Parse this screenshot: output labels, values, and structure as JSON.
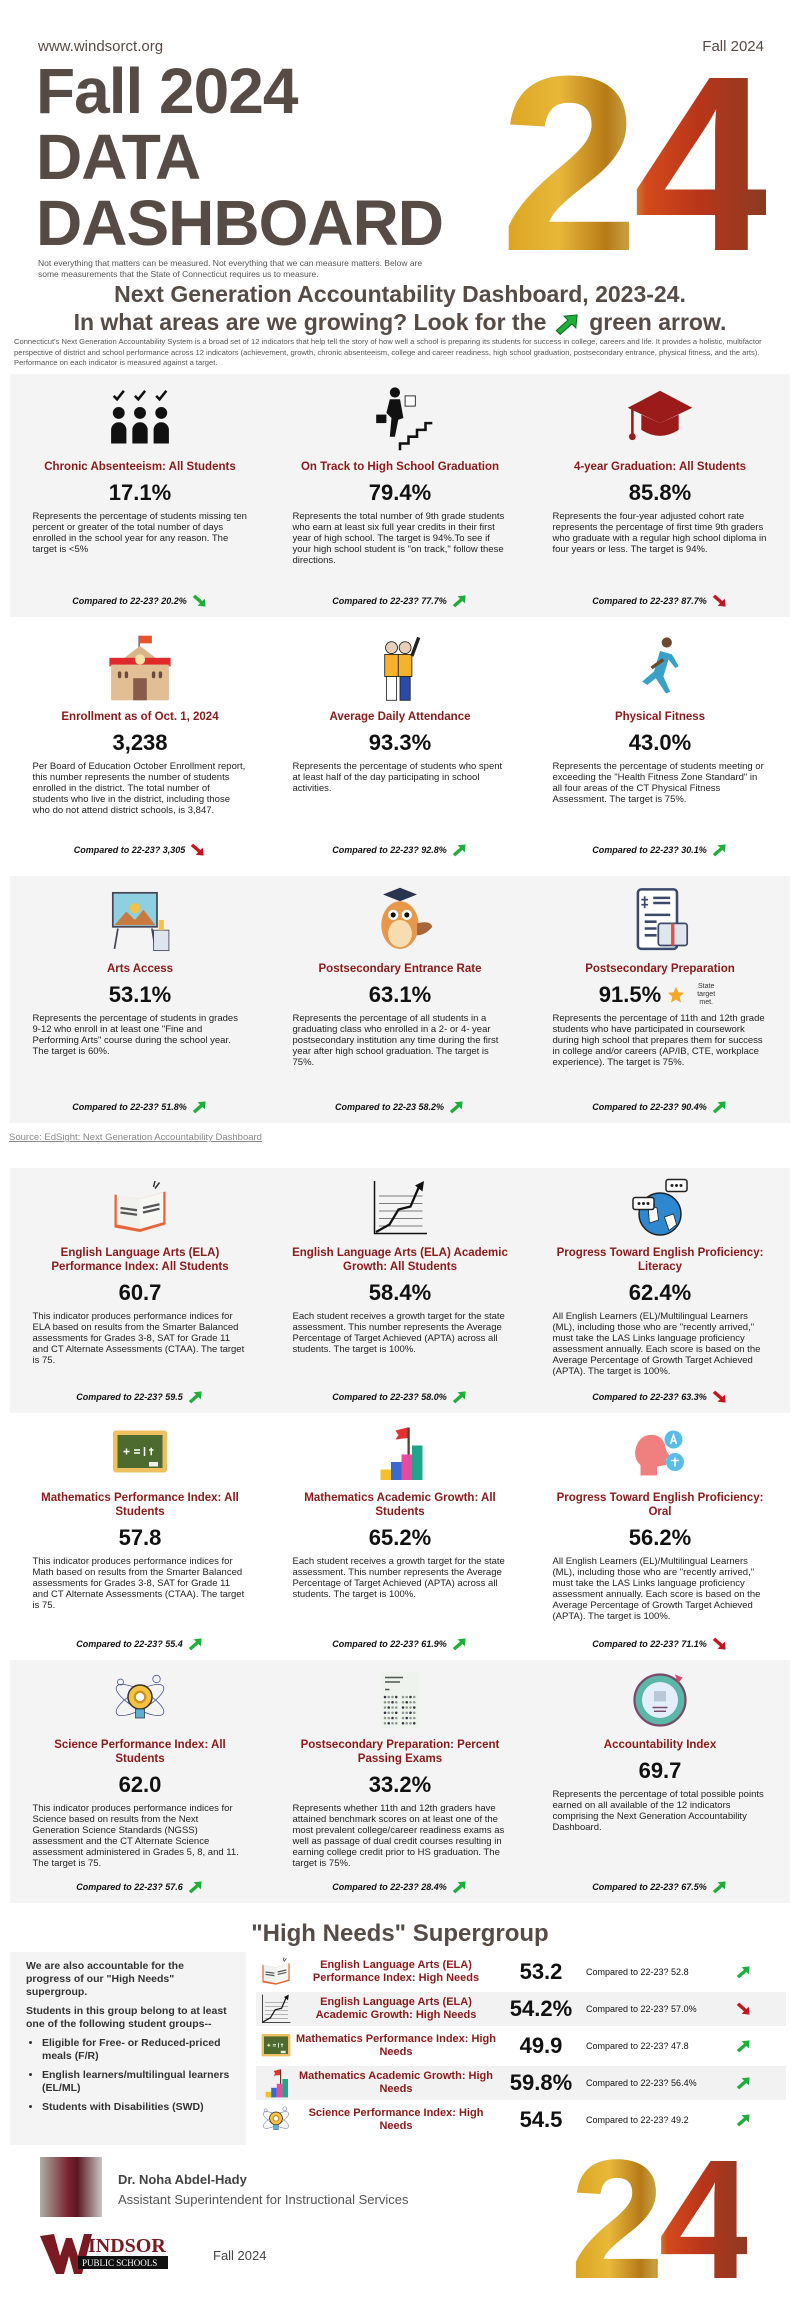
{
  "header": {
    "site": "www.windsorct.org",
    "fall_label": "Fall 2024",
    "title_lines": [
      "Fall 2024",
      "DATA",
      "DASHBOARD"
    ],
    "big_number": "24",
    "tagline": "Not everything that matters can be measured. Not everything that we can measure matters. Below are some measurements that the State of Connecticut requires us to measure."
  },
  "ng": {
    "line1": "Next Generation Accountability Dashboard, 2023-24.",
    "line2a": "In what areas are we growing?  Look for the",
    "line2b": "green arrow.",
    "intro": "Connecticut's Next Generation Accountability System is a broad set of 12 indicators that help tell the story of how well a school is preparing its students for success in college, careers and life. It provides a holistic, multifactor perspective of district and school performance across 12 indicators (achievement, growth, chronic absenteeism, college and career readiness, high school graduation, postsecondary entrance, physical fitness, and the arts). Performance on each indicator is measured against a target."
  },
  "colors": {
    "up": "#1fae3a",
    "down": "#c3161c",
    "title": "#8b1a1a",
    "brand": "#574b45"
  },
  "sections": [
    {
      "cards": [
        {
          "icon": "students-check-icon",
          "title": "Chronic Absenteeism: All Students",
          "value": "17.1%",
          "description": "Represents the percentage of students missing ten percent or greater of the total number of days enrolled in the school year for any reason. The target is <5%",
          "compared": "Compared to 22-23? 20.2%",
          "trend": "down-good"
        },
        {
          "icon": "student-climbing-stairs-icon",
          "title": "On Track to High School Graduation",
          "value": "79.4%",
          "description": "Represents the total number of 9th grade students who earn at least six full year credits in their first year of high school. The target is 94%.To see if your high school student is \"on track,\" follow these directions.",
          "compared": "Compared to 22-23? 77.7%",
          "trend": "up"
        },
        {
          "icon": "graduation-cap-icon",
          "title": "4-year Graduation: All Students",
          "value": "85.8%",
          "description": "Represents the four-year adjusted cohort rate represents the percentage of first time 9th graders who graduate with a regular high school diploma in four years or less. The target is 94%.",
          "compared": "Compared to 22-23? 87.7%",
          "trend": "down"
        }
      ]
    },
    {
      "cards": [
        {
          "icon": "school-building-icon",
          "title": "Enrollment as of Oct. 1, 2024",
          "value": "3,238",
          "description": "Per Board of Education October Enrollment report, this number represents the number of students enrolled in the district. The total number of students who live in the district, including those who do not attend district schools, is 3,847.",
          "compared": "Compared to 22-23? 3,305",
          "trend": "down"
        },
        {
          "icon": "students-raising-hand-icon",
          "title": "Average Daily Attendance",
          "value": "93.3%",
          "description": "Represents the percentage of students who spent at least half of the day participating in school activities.",
          "compared": "Compared to 22-23? 92.8%",
          "trend": "up"
        },
        {
          "icon": "runner-icon",
          "title": "Physical Fitness",
          "value": "43.0%",
          "description": "Represents the percentage of students meeting or exceeding the \"Health Fitness Zone Standard\" in all four areas of the CT Physical Fitness Assessment. The target is 75%.",
          "compared": "Compared to 22-23? 30.1%",
          "trend": "up"
        }
      ]
    },
    {
      "cards": [
        {
          "icon": "easel-painting-icon",
          "title": "Arts Access",
          "value": "53.1%",
          "description": "Represents the percentage of students in grades 9-12 who enroll in at least one \"Fine and Performing Arts\" course during the school year. The target is 60%.",
          "compared": "Compared to 22-23? 51.8%",
          "trend": "up"
        },
        {
          "icon": "owl-graduate-icon",
          "title": "Postsecondary Entrance Rate",
          "value": "63.1%",
          "description": "Represents the percentage of all students in a graduating class who enrolled in a 2- or 4- year postsecondary institution any time during the first year after high school graduation. The target is 75%.",
          "compared": "Compared to 22-23 58.2%",
          "trend": "up"
        },
        {
          "icon": "resume-briefcase-icon",
          "title": "Postsecondary Preparation",
          "value": "91.5%",
          "star_note": "State target met.",
          "description": "Represents the percentage of 11th and 12th grade students who have participated in coursework during high school that prepares them for success in college and/or careers (AP/IB, CTE, workplace experience). The target is 75%.",
          "compared": "Compared to 22-23? 90.4%",
          "trend": "up"
        }
      ]
    },
    {
      "cards": [
        {
          "icon": "english-book-icon",
          "title": "English Language Arts (ELA) Performance Index: All Students",
          "value": "60.7",
          "description": "This indicator produces performance indices for ELA based on results from the Smarter Balanced assessments for Grades 3-8, SAT for Grade 11 and CT Alternate Assessments (CTAA). The target is 75.",
          "compared": "Compared to 22-23? 59.5",
          "trend": "up"
        },
        {
          "icon": "growth-chart-icon",
          "title": "English Language Arts (ELA) Academic Growth: All Students",
          "value": "58.4%",
          "description": "Each student receives a growth target for the state assessment. This number represents the Average Percentage of Target Achieved (APTA) across all students. The target is 100%.",
          "compared": "Compared to 22-23? 58.0%",
          "trend": "up"
        },
        {
          "icon": "globe-chat-icon",
          "title": "Progress Toward English Proficiency: Literacy",
          "value": "62.4%",
          "description": "All English Learners (EL)/Multilingual Learners (ML), including those who are \"recently arrived,\" must take the LAS Links language proficiency assessment annually. Each score is based on the Average Percentage of Growth Target Achieved (APTA). The target is 100%.",
          "compared": "Compared to 22-23? 63.3%",
          "trend": "down"
        }
      ]
    },
    {
      "cards": [
        {
          "icon": "chalkboard-icon",
          "title": "Mathematics Performance Index: All Students",
          "value": "57.8",
          "description": "This indicator produces performance indices for Math based on results from the Smarter Balanced assessments for Grades 3-8, SAT for Grade 11 and CT Alternate Assessments (CTAA). The target is 75.",
          "compared": "Compared to 22-23? 55.4",
          "trend": "up"
        },
        {
          "icon": "bar-flag-icon",
          "title": "Mathematics Academic Growth: All Students",
          "value": "65.2%",
          "description": "Each student receives a growth target for the state assessment. This number represents the Average Percentage of Target Achieved (APTA) across all students. The target is 100%.",
          "compared": "Compared to 22-23? 61.9%",
          "trend": "up"
        },
        {
          "icon": "speaking-language-icon",
          "title": "Progress Toward English Proficiency: Oral",
          "value": "56.2%",
          "description": "All English Learners (EL)/Multilingual Learners (ML), including those who are \"recently arrived,\" must take the LAS Links language proficiency assessment annually. Each score is based on the Average Percentage of Growth Target Achieved (APTA). The target is 100%.",
          "compared": "Compared to 22-23? 71.1%",
          "trend": "down"
        }
      ]
    },
    {
      "cards": [
        {
          "icon": "science-bulb-icon",
          "title": "Science Performance Index: All Students",
          "value": "62.0",
          "description": "This indicator produces performance indices for Science based on results from the Next Generation Science Standards (NGSS) assessment and the CT Alternate Science assessment administered in Grades 5, 8, and 11. The target is 75.",
          "compared": "Compared to 22-23? 57.6",
          "trend": "up"
        },
        {
          "icon": "answer-sheet-icon",
          "title": "Postsecondary Preparation: Percent Passing Exams",
          "value": "33.2%",
          "description": "Represents whether 11th and 12th graders have attained benchmark scores on at least one of the most prevalent college/career readiness exams as well as passage of dual credit courses resulting in earning college credit prior to HS graduation. The target is 75%.",
          "compared": "Compared to 22-23? 28.4%",
          "trend": "up"
        },
        {
          "icon": "gauge-icon",
          "title": "Accountability Index",
          "value": "69.7",
          "description": "Represents the percentage of total possible points earned on all available of the 12 indicators comprising the Next Generation Accountability Dashboard.",
          "compared": "Compared to 22-23? 67.5%",
          "trend": "up"
        }
      ]
    }
  ],
  "source": "Source: EdSight: Next Generation Accountability Dashboard",
  "high_needs": {
    "title": "\"High Needs\" Supergroup",
    "intro1": "We are also accountable for the progress of our \"High Needs\" supergroup.",
    "intro2": "Students in this group belong to at least one of the following student groups--",
    "groups": [
      "Eligible for Free- or Reduced-priced meals (F/R)",
      "English learners/multilingual learners (EL/ML)",
      "Students with Disabilities (SWD)"
    ],
    "rows": [
      {
        "icon": "english-book-icon",
        "title": "English Language Arts (ELA) Performance Index: High Needs",
        "value": "53.2",
        "compared": "Compared to 22-23? 52.8",
        "trend": "up"
      },
      {
        "icon": "growth-chart-icon",
        "title": "English Language Arts (ELA) Academic Growth: High Needs",
        "value": "54.2%",
        "compared": "Compared to 22-23? 57.0%",
        "trend": "down"
      },
      {
        "icon": "chalkboard-icon",
        "title": "Mathematics Performance Index: High Needs",
        "value": "49.9",
        "compared": "Compared to 22-23? 47.8",
        "trend": "up"
      },
      {
        "icon": "bar-flag-icon",
        "title": "Mathematics Academic Growth: High Needs",
        "value": "59.8%",
        "compared": "Compared to 22-23? 56.4%",
        "trend": "up"
      },
      {
        "icon": "science-bulb-icon",
        "title": "Science Performance Index: High Needs",
        "value": "54.5",
        "compared": "Compared to 22-23? 49.2",
        "trend": "up"
      }
    ]
  },
  "footer": {
    "name": "Dr. Noha Abdel-Hady",
    "role": "Assistant Superintendent for Instructional Services",
    "logo_text": [
      "INDSOR",
      "PUBLIC SCHOOLS"
    ],
    "fall_label": "Fall 2024"
  }
}
